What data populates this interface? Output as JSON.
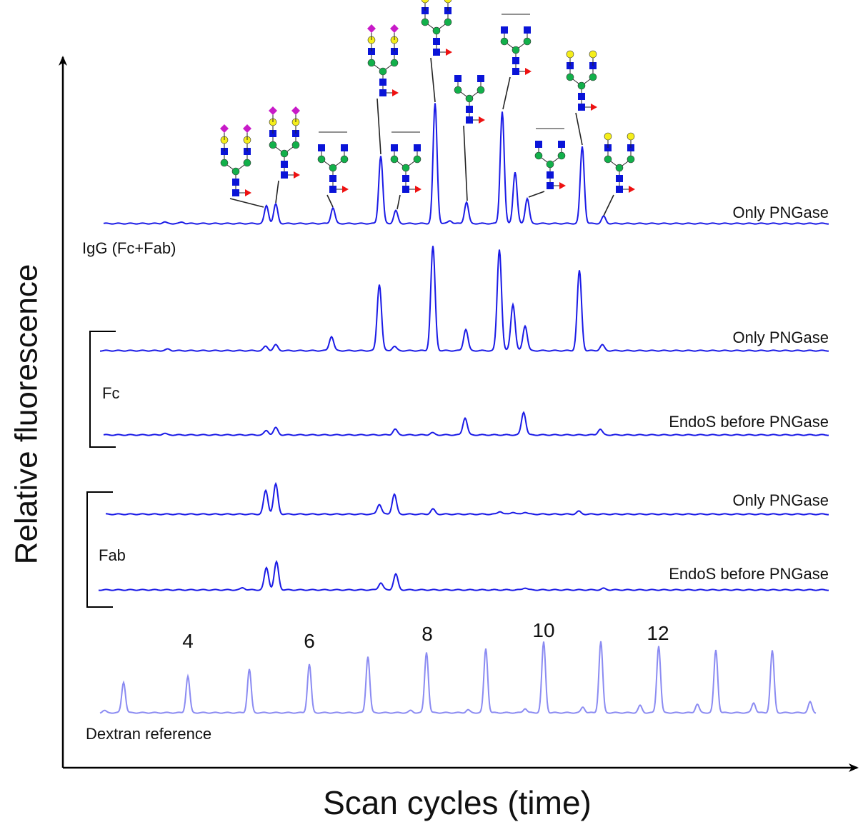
{
  "y_axis_label": "Relative fluorescence",
  "x_axis_label": "Scan cycles (time)",
  "igg": {
    "label": "IgG (Fc+Fab)",
    "trace_label": "Only PNGase"
  },
  "fc": {
    "label": "Fc",
    "trace_labels": [
      "Only PNGase",
      "EndoS before PNGase"
    ]
  },
  "fab": {
    "label": "Fab",
    "trace_labels": [
      "Only PNGase",
      "EndoS before PNGase"
    ]
  },
  "dextran": {
    "label": "Dextran reference",
    "peak_labels": [
      4,
      6,
      8,
      10,
      12
    ]
  }
}
